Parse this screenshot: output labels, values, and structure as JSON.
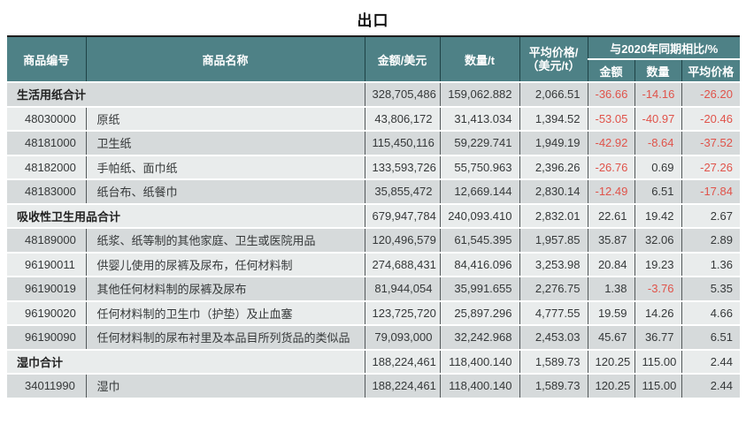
{
  "title": "出口",
  "colors": {
    "header_bg": "#4e8186",
    "row_dark": "#d6dadb",
    "row_light": "#e9ecec",
    "negative_text": "#e0534a",
    "body_text": "#353839"
  },
  "table": {
    "headers": {
      "code": "商品编号",
      "name": "商品名称",
      "amount": "金额/美元",
      "quantity": "数量/t",
      "avg_price_line1": "平均价格/",
      "avg_price_line2": "（美元/t）",
      "yoy_group": "与2020年同期相比/%",
      "yoy_amount": "金额",
      "yoy_quantity": "数量",
      "yoy_avg_price": "平均价格"
    },
    "rows": [
      {
        "type": "section",
        "code": "",
        "name": "生活用纸合计",
        "amount": "328,705,486",
        "quantity": "159,062.882",
        "avg_price": "2,066.51",
        "yoy_amount": "-36.66",
        "yoy_quantity": "-14.16",
        "yoy_avg_price": "-26.20"
      },
      {
        "type": "item",
        "code": "48030000",
        "name": "原纸",
        "amount": "43,806,172",
        "quantity": "31,413.034",
        "avg_price": "1,394.52",
        "yoy_amount": "-53.05",
        "yoy_quantity": "-40.97",
        "yoy_avg_price": "-20.46"
      },
      {
        "type": "item",
        "code": "48181000",
        "name": "卫生纸",
        "amount": "115,450,116",
        "quantity": "59,229.741",
        "avg_price": "1,949.19",
        "yoy_amount": "-42.92",
        "yoy_quantity": "-8.64",
        "yoy_avg_price": "-37.52"
      },
      {
        "type": "item",
        "code": "48182000",
        "name": "手帕纸、面巾纸",
        "amount": "133,593,726",
        "quantity": "55,750.963",
        "avg_price": "2,396.26",
        "yoy_amount": "-26.76",
        "yoy_quantity": "0.69",
        "yoy_avg_price": "-27.26"
      },
      {
        "type": "item",
        "code": "48183000",
        "name": "纸台布、纸餐巾",
        "amount": "35,855,472",
        "quantity": "12,669.144",
        "avg_price": "2,830.14",
        "yoy_amount": "-12.49",
        "yoy_quantity": "6.51",
        "yoy_avg_price": "-17.84"
      },
      {
        "type": "section",
        "code": "",
        "name": "吸收性卫生用品合计",
        "amount": "679,947,784",
        "quantity": "240,093.410",
        "avg_price": "2,832.01",
        "yoy_amount": "22.61",
        "yoy_quantity": "19.42",
        "yoy_avg_price": "2.67"
      },
      {
        "type": "item",
        "code": "48189000",
        "name": "纸浆、纸等制的其他家庭、卫生或医院用品",
        "amount": "120,496,579",
        "quantity": "61,545.395",
        "avg_price": "1,957.85",
        "yoy_amount": "35.87",
        "yoy_quantity": "32.06",
        "yoy_avg_price": "2.89"
      },
      {
        "type": "item",
        "code": "96190011",
        "name": "供婴儿使用的尿裤及尿布，任何材料制",
        "amount": "274,688,431",
        "quantity": "84,416.096",
        "avg_price": "3,253.98",
        "yoy_amount": "20.84",
        "yoy_quantity": "19.23",
        "yoy_avg_price": "1.36"
      },
      {
        "type": "item",
        "code": "96190019",
        "name": "其他任何材料制的尿裤及尿布",
        "amount": "81,944,054",
        "quantity": "35,991.655",
        "avg_price": "2,276.75",
        "yoy_amount": "1.38",
        "yoy_quantity": "-3.76",
        "yoy_avg_price": "5.35"
      },
      {
        "type": "item",
        "code": "96190020",
        "name": "任何材料制的卫生巾（护垫）及止血塞",
        "amount": "123,725,720",
        "quantity": "25,897.296",
        "avg_price": "4,777.55",
        "yoy_amount": "19.59",
        "yoy_quantity": "14.26",
        "yoy_avg_price": "4.66"
      },
      {
        "type": "item",
        "code": "96190090",
        "name": "任何材料制的尿布衬里及本品目所列货品的类似品",
        "amount": "79,093,000",
        "quantity": "32,242.968",
        "avg_price": "2,453.03",
        "yoy_amount": "45.67",
        "yoy_quantity": "36.77",
        "yoy_avg_price": "6.51"
      },
      {
        "type": "section",
        "code": "",
        "name": "湿巾合计",
        "amount": "188,224,461",
        "quantity": "118,400.140",
        "avg_price": "1,589.73",
        "yoy_amount": "120.25",
        "yoy_quantity": "115.00",
        "yoy_avg_price": "2.44"
      },
      {
        "type": "item",
        "code": "34011990",
        "name": "湿巾",
        "amount": "188,224,461",
        "quantity": "118,400.140",
        "avg_price": "1,589.73",
        "yoy_amount": "120.25",
        "yoy_quantity": "115.00",
        "yoy_avg_price": "2.44"
      }
    ]
  }
}
